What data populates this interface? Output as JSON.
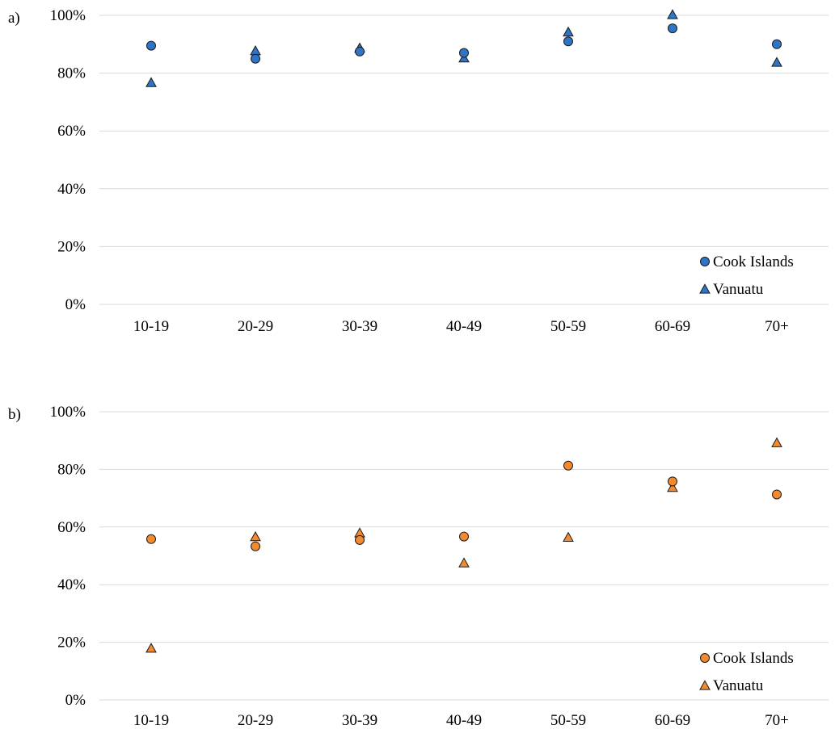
{
  "chart_data": [
    {
      "type": "scatter",
      "panel_label": "a)",
      "categories": [
        "10-19",
        "20-29",
        "30-39",
        "40-49",
        "50-59",
        "60-69",
        "70+"
      ],
      "y_ticks": [
        "0%",
        "20%",
        "40%",
        "60%",
        "80%",
        "100%"
      ],
      "ylim": [
        0,
        100
      ],
      "grid": true,
      "legend_position": "bottom-right",
      "series": [
        {
          "name": "Cook Islands",
          "marker": "circle",
          "color": "#2e75c8",
          "values": [
            89.5,
            85,
            87.5,
            87,
            91,
            95.5,
            90
          ]
        },
        {
          "name": "Vanuatu",
          "marker": "triangle",
          "color": "#2e75c8",
          "values": [
            76.5,
            87.5,
            88.5,
            85,
            94,
            100,
            83.5
          ]
        }
      ]
    },
    {
      "type": "scatter",
      "panel_label": "b)",
      "categories": [
        "10-19",
        "20-29",
        "30-39",
        "40-49",
        "50-59",
        "60-69",
        "70+"
      ],
      "y_ticks": [
        "0%",
        "20%",
        "40%",
        "60%",
        "80%",
        "100%"
      ],
      "ylim": [
        0,
        100
      ],
      "grid": true,
      "legend_position": "bottom-right",
      "series": [
        {
          "name": "Cook Islands",
          "marker": "circle",
          "color": "#f28a30",
          "values": [
            55.8,
            53.3,
            55.5,
            56.7,
            81.3,
            75.8,
            71.3
          ]
        },
        {
          "name": "Vanuatu",
          "marker": "triangle",
          "color": "#f28a30",
          "values": [
            17.7,
            56.4,
            57.7,
            47.3,
            56.2,
            73.5,
            89
          ]
        }
      ]
    }
  ]
}
